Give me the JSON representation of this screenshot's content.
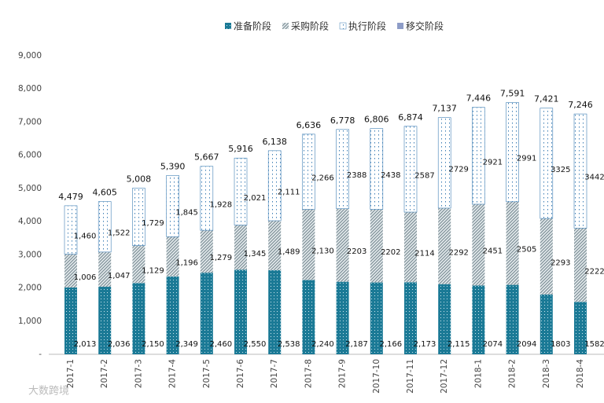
{
  "chart_data": {
    "type": "stacked_bar",
    "categories": [
      "2017-1",
      "2017-2",
      "2017-3",
      "2017-4",
      "2017-5",
      "2017-6",
      "2017-7",
      "2017-8",
      "2017-9",
      "2017-10",
      "2017-11",
      "2017-12",
      "2018-1",
      "2018-2",
      "2018-3",
      "2018-4"
    ],
    "series": [
      {
        "name": "准备阶段",
        "color": "#1b7a96",
        "fill_style": "dots",
        "values": [
          2013,
          2036,
          2150,
          2349,
          2460,
          2550,
          2538,
          2240,
          2187,
          2166,
          2173,
          2115,
          2074,
          2094,
          1803,
          1582
        ],
        "value_labels": [
          "2,013",
          "2,036",
          "2,150",
          "2,349",
          "2,460",
          "2,550",
          "2,538",
          "2,240",
          "2,187",
          "2,166",
          "2,173",
          "2,115",
          "2074",
          "2094",
          "1803",
          "1582"
        ]
      },
      {
        "name": "采购阶段",
        "color": "#7f9098",
        "fill_style": "hatch",
        "values": [
          1006,
          1047,
          1129,
          1196,
          1279,
          1345,
          1489,
          2130,
          2203,
          2202,
          2114,
          2292,
          2451,
          2505,
          2293,
          2222
        ],
        "value_labels": [
          "1,006",
          "1,047",
          "1,129",
          "1,196",
          "1,279",
          "1,345",
          "1,489",
          "2,130",
          "2203",
          "2202",
          "2114",
          "2292",
          "2451",
          "2505",
          "2293",
          "2222"
        ]
      },
      {
        "name": "执行阶段",
        "color": "#3f7fb5",
        "fill_style": "sparse-dots",
        "values": [
          1460,
          1522,
          1729,
          1845,
          1928,
          2021,
          2111,
          2266,
          2388,
          2438,
          2587,
          2729,
          2921,
          2991,
          3325,
          3442
        ],
        "value_labels": [
          "1,460",
          "1,522",
          "1,729",
          "1,845",
          "1,928",
          "2,021",
          "2,111",
          "2,266",
          "2388",
          "2438",
          "2587",
          "2729",
          "2921",
          "2991",
          "3325",
          "3442"
        ]
      },
      {
        "name": "移交阶段",
        "color": "#8d9cc7",
        "fill_style": "solid",
        "values": [
          0,
          0,
          0,
          0,
          0,
          0,
          0,
          0,
          0,
          0,
          0,
          0,
          0,
          0,
          0,
          0
        ]
      }
    ],
    "totals": [
      4479,
      4605,
      5008,
      5390,
      5667,
      5916,
      6138,
      6636,
      6778,
      6806,
      6874,
      7137,
      7446,
      7591,
      7421,
      7246
    ],
    "total_labels": [
      "4,479",
      "4,605",
      "5,008",
      "5,390",
      "5,667",
      "5,916",
      "6,138",
      "6,636",
      "6,778",
      "6,806",
      "6,874",
      "7,137",
      "7,446",
      "7,591",
      "7,421",
      "7,246"
    ],
    "ylim": [
      0,
      9000
    ],
    "yticks": [
      {
        "value": 0,
        "label": "-"
      },
      {
        "value": 1000,
        "label": "1,000"
      },
      {
        "value": 2000,
        "label": "2,000"
      },
      {
        "value": 3000,
        "label": "3,000"
      },
      {
        "value": 4000,
        "label": "4,000"
      },
      {
        "value": 5000,
        "label": "5,000"
      },
      {
        "value": 6000,
        "label": "6,000"
      },
      {
        "value": 7000,
        "label": "7,000"
      },
      {
        "value": 8000,
        "label": "8,000"
      },
      {
        "value": 9000,
        "label": "9,000"
      }
    ],
    "grid": false,
    "legend_position": "top",
    "watermark": "大数跨境"
  }
}
